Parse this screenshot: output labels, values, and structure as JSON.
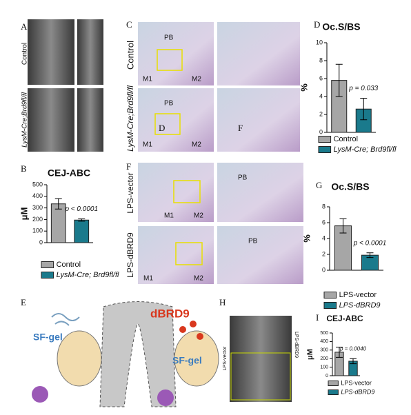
{
  "letters": [
    "A",
    "B",
    "C",
    "D",
    "E",
    "F",
    "G",
    "H",
    "I"
  ],
  "image_labels": {
    "A": [
      "Control",
      "LysM-Cre;Brd9fl/fl"
    ],
    "C": [
      "Control",
      "LysM-Cre;Brd9fl/fl",
      "PB",
      "PB",
      "M1",
      "M2",
      "M1",
      "M2",
      "D",
      "F"
    ],
    "F": [
      "LPS-vector",
      "LPS-dBRD9",
      "M1",
      "M2",
      "M1",
      "M2",
      "PB",
      "PB"
    ],
    "E": [
      "SF-gel",
      "dBRD9",
      "SF-gel"
    ],
    "H": [
      "LPS-vector",
      "LPS-dBRD9"
    ]
  },
  "chart_data": [
    {
      "type": "bar",
      "title": "CEJ-ABC",
      "y_label": "μM",
      "ylim": [
        0,
        500
      ],
      "yticks": [
        0,
        100,
        200,
        300,
        400,
        500
      ],
      "annotation": "p < 0.0001",
      "series": [
        {
          "name": "Control",
          "color": "#a6a6a6",
          "values": [
            335
          ],
          "errors": [
            45
          ]
        },
        {
          "name": "LysM-Cre; Brd9fl/fl",
          "color": "#1a7a8c",
          "values": [
            195
          ],
          "errors": [
            10
          ]
        }
      ]
    },
    {
      "type": "bar",
      "title": "Oc.S/BS",
      "y_label": "%",
      "ylim": [
        0,
        10
      ],
      "yticks": [
        0,
        2,
        4,
        6,
        8,
        10
      ],
      "annotation": "p = 0.033",
      "series": [
        {
          "name": "Control",
          "color": "#a6a6a6",
          "values": [
            5.8
          ],
          "errors": [
            1.8
          ]
        },
        {
          "name": "LysM-Cre; Brd9fl/fl",
          "color": "#1a7a8c",
          "values": [
            2.6
          ],
          "errors": [
            1.2
          ]
        }
      ]
    },
    {
      "type": "bar",
      "title": "Oc.S/BS",
      "y_label": "%",
      "ylim": [
        0,
        8
      ],
      "yticks": [
        0,
        2,
        4,
        6,
        8
      ],
      "annotation": "p < 0.0001",
      "series": [
        {
          "name": "LPS-vector",
          "color": "#a6a6a6",
          "values": [
            5.6
          ],
          "errors": [
            0.9
          ]
        },
        {
          "name": "LPS-dBRD9",
          "color": "#1a7a8c",
          "values": [
            1.9
          ],
          "errors": [
            0.3
          ]
        }
      ]
    },
    {
      "type": "bar",
      "title": "CEJ-ABC",
      "y_label": "μM",
      "ylim": [
        0,
        500
      ],
      "yticks": [
        0,
        100,
        200,
        300,
        400,
        500
      ],
      "annotation": "p = 0.0040",
      "series": [
        {
          "name": "LPS-vector",
          "color": "#a6a6a6",
          "values": [
            275
          ],
          "errors": [
            60
          ]
        },
        {
          "name": "LPS-dBRD9",
          "color": "#1a7a8c",
          "values": [
            170
          ],
          "errors": [
            30
          ]
        }
      ]
    }
  ]
}
